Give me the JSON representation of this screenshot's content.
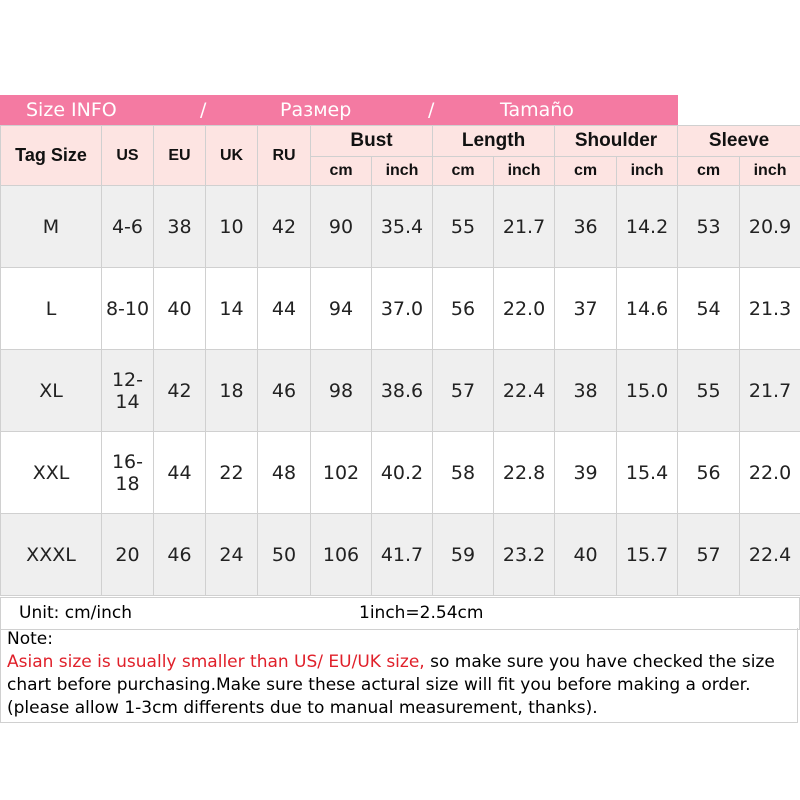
{
  "banner": {
    "en": "Size INFO",
    "sep": "/",
    "ru": "Размер",
    "es": "Tamaño",
    "color": "#f47aa2"
  },
  "headers": {
    "tag": "Tag Size",
    "us": "US",
    "eu": "EU",
    "uk": "UK",
    "ru": "RU",
    "groups": [
      "Bust",
      "Length",
      "Shoulder",
      "Sleeve"
    ],
    "cm": "cm",
    "inch": "inch"
  },
  "rows": [
    [
      "M",
      "4-6",
      "38",
      "10",
      "42",
      "90",
      "35.4",
      "55",
      "21.7",
      "36",
      "14.2",
      "53",
      "20.9"
    ],
    [
      "L",
      "8-10",
      "40",
      "14",
      "44",
      "94",
      "37.0",
      "56",
      "22.0",
      "37",
      "14.6",
      "54",
      "21.3"
    ],
    [
      "XL",
      "12-14",
      "42",
      "18",
      "46",
      "98",
      "38.6",
      "57",
      "22.4",
      "38",
      "15.0",
      "55",
      "21.7"
    ],
    [
      "XXL",
      "16-18",
      "44",
      "22",
      "48",
      "102",
      "40.2",
      "58",
      "22.8",
      "39",
      "15.4",
      "56",
      "22.0"
    ],
    [
      "XXXL",
      "20",
      "46",
      "24",
      "50",
      "106",
      "41.7",
      "59",
      "23.2",
      "40",
      "15.7",
      "57",
      "22.4"
    ]
  ],
  "unit": {
    "label": "Unit: cm/inch",
    "conversion": "1inch=2.54cm"
  },
  "note": {
    "title": "Note:",
    "warning": "Asian size is usually smaller than US/ EU/UK size,",
    "text": " so make sure you have checked the size chart before purchasing.Make sure these actural size will fit you before making a order.(please allow 1-3cm differents due to manual measurement, thanks)."
  }
}
